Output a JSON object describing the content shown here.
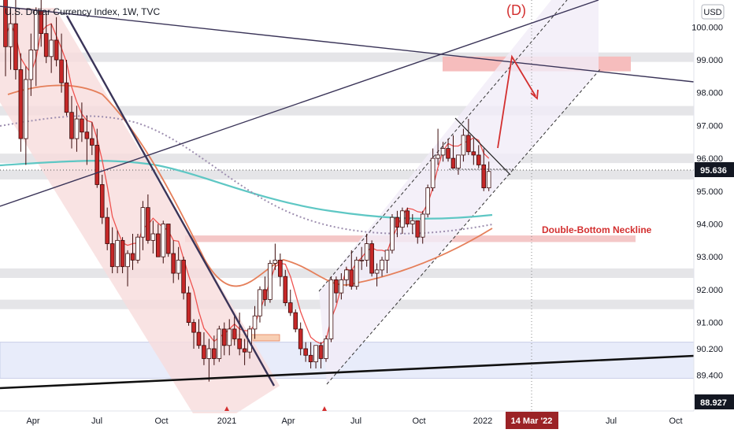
{
  "chart_title": "U.S. Dollar Currency Index, 1W, TVC",
  "chart_data": {
    "type": "candlestick",
    "title": "U.S. Dollar Currency Index, 1W, TVC",
    "currency": "USD",
    "timeframe": "1W",
    "ylim": [
      88.7,
      101.0
    ],
    "y_ticks": [
      100.0,
      99.0,
      98.0,
      97.0,
      96.0,
      95.0,
      94.0,
      93.0,
      92.0,
      91.0,
      90.2,
      89.4
    ],
    "x_ticks": [
      "Apr",
      "Jul",
      "Oct",
      "2021",
      "Apr",
      "Jul",
      "Oct",
      "2022",
      "Jul",
      "Oct"
    ],
    "current_price": "95.636",
    "low_price_label": "88.927",
    "marked_date": "14 Mar '22",
    "candles": [
      [
        101.8,
        102.3,
        98.5,
        99.4
      ],
      [
        99.4,
        100.6,
        98.7,
        100.1
      ],
      [
        100.1,
        100.9,
        98.4,
        98.7
      ],
      [
        98.7,
        99.2,
        96.2,
        96.6
      ],
      [
        96.6,
        98.8,
        95.8,
        98.4
      ],
      [
        98.4,
        99.8,
        97.9,
        99.3
      ],
      [
        99.3,
        100.6,
        98.2,
        100.5
      ],
      [
        100.5,
        101.2,
        99.4,
        99.8
      ],
      [
        99.8,
        100.4,
        98.9,
        99.1
      ],
      [
        99.1,
        100.1,
        98.6,
        99.6
      ],
      [
        99.6,
        100.3,
        98.8,
        99.0
      ],
      [
        99.0,
        99.8,
        98.0,
        98.3
      ],
      [
        98.3,
        99.0,
        97.3,
        97.4
      ],
      [
        97.4,
        97.9,
        96.3,
        96.6
      ],
      [
        96.6,
        97.6,
        96.2,
        97.2
      ],
      [
        97.2,
        97.7,
        96.5,
        96.8
      ],
      [
        96.8,
        97.3,
        95.8,
        96.6
      ],
      [
        96.6,
        97.1,
        96.1,
        96.4
      ],
      [
        96.4,
        96.9,
        95.1,
        95.2
      ],
      [
        95.2,
        95.5,
        94.0,
        94.2
      ],
      [
        94.2,
        94.5,
        93.2,
        93.4
      ],
      [
        93.4,
        93.9,
        92.5,
        92.7
      ],
      [
        92.7,
        93.8,
        92.5,
        93.5
      ],
      [
        93.5,
        93.6,
        92.5,
        92.7
      ],
      [
        92.7,
        93.2,
        92.1,
        93.1
      ],
      [
        93.1,
        93.7,
        92.6,
        92.9
      ],
      [
        92.9,
        93.7,
        92.8,
        93.6
      ],
      [
        93.6,
        94.7,
        93.2,
        94.5
      ],
      [
        94.5,
        94.9,
        93.4,
        93.5
      ],
      [
        93.5,
        94.1,
        93.1,
        93.7
      ],
      [
        93.7,
        94.0,
        93.0,
        93.0
      ],
      [
        93.0,
        94.1,
        92.8,
        94.0
      ],
      [
        94.0,
        94.0,
        93.0,
        93.1
      ],
      [
        93.1,
        93.5,
        92.2,
        92.5
      ],
      [
        92.5,
        93.3,
        92.3,
        92.9
      ],
      [
        92.9,
        93.0,
        91.7,
        91.9
      ],
      [
        91.9,
        92.1,
        90.9,
        91.0
      ],
      [
        91.0,
        91.1,
        90.2,
        90.7
      ],
      [
        90.7,
        91.1,
        90.2,
        90.3
      ],
      [
        90.3,
        90.7,
        89.7,
        89.9
      ],
      [
        89.9,
        90.5,
        89.2,
        90.2
      ],
      [
        90.2,
        90.6,
        89.7,
        89.9
      ],
      [
        89.9,
        90.9,
        89.8,
        90.8
      ],
      [
        90.8,
        91.0,
        90.0,
        90.3
      ],
      [
        90.3,
        91.1,
        90.0,
        90.8
      ],
      [
        90.8,
        91.2,
        90.3,
        90.5
      ],
      [
        90.5,
        91.3,
        90.0,
        90.2
      ],
      [
        90.2,
        90.5,
        89.7,
        90.1
      ],
      [
        90.1,
        90.9,
        89.9,
        90.8
      ],
      [
        90.8,
        91.5,
        90.5,
        91.2
      ],
      [
        91.2,
        92.1,
        91.0,
        92.0
      ],
      [
        92.0,
        92.4,
        91.5,
        91.7
      ],
      [
        91.7,
        92.9,
        91.6,
        92.8
      ],
      [
        92.8,
        93.4,
        92.6,
        92.9
      ],
      [
        92.9,
        93.1,
        92.1,
        92.4
      ],
      [
        92.4,
        92.6,
        91.5,
        91.6
      ],
      [
        91.6,
        92.0,
        91.2,
        91.3
      ],
      [
        91.3,
        91.4,
        90.7,
        90.8
      ],
      [
        90.8,
        91.0,
        90.0,
        90.2
      ],
      [
        90.2,
        90.4,
        89.8,
        90.0
      ],
      [
        90.0,
        90.4,
        89.6,
        89.8
      ],
      [
        89.8,
        90.3,
        89.6,
        90.3
      ],
      [
        90.3,
        90.4,
        89.6,
        89.9
      ],
      [
        89.9,
        90.6,
        89.8,
        90.5
      ],
      [
        90.5,
        92.4,
        90.4,
        92.3
      ],
      [
        92.3,
        92.4,
        91.6,
        91.9
      ],
      [
        91.9,
        92.5,
        91.7,
        92.3
      ],
      [
        92.3,
        92.7,
        92.1,
        92.6
      ],
      [
        92.6,
        93.2,
        92.0,
        92.1
      ],
      [
        92.1,
        93.0,
        92.0,
        92.9
      ],
      [
        92.9,
        93.3,
        92.6,
        92.9
      ],
      [
        92.9,
        93.7,
        92.7,
        93.4
      ],
      [
        93.4,
        93.5,
        92.4,
        92.5
      ],
      [
        92.5,
        92.8,
        92.1,
        92.6
      ],
      [
        92.6,
        93.0,
        92.4,
        92.9
      ],
      [
        92.9,
        93.2,
        92.5,
        93.2
      ],
      [
        93.2,
        94.3,
        93.1,
        94.2
      ],
      [
        94.2,
        94.4,
        93.6,
        93.9
      ],
      [
        93.9,
        94.5,
        93.7,
        94.4
      ],
      [
        94.4,
        94.5,
        93.9,
        94.0
      ],
      [
        94.0,
        94.3,
        93.7,
        94.1
      ],
      [
        94.1,
        94.1,
        93.4,
        93.6
      ],
      [
        93.6,
        94.4,
        93.4,
        94.3
      ],
      [
        94.3,
        95.2,
        94.2,
        95.1
      ],
      [
        95.1,
        96.3,
        95.0,
        96.0
      ],
      [
        96.0,
        96.9,
        95.8,
        96.1
      ],
      [
        96.1,
        96.5,
        95.9,
        96.3
      ],
      [
        96.3,
        96.6,
        95.9,
        96.0
      ],
      [
        96.0,
        96.7,
        95.7,
        95.7
      ],
      [
        95.7,
        96.1,
        95.5,
        96.1
      ],
      [
        96.1,
        96.9,
        95.9,
        96.7
      ],
      [
        96.7,
        97.2,
        96.1,
        96.2
      ],
      [
        96.2,
        96.6,
        95.8,
        96.1
      ],
      [
        96.1,
        96.4,
        95.7,
        95.8
      ],
      [
        95.8,
        96.3,
        95.0,
        95.1
      ],
      [
        95.1,
        95.9,
        95.0,
        95.6
      ]
    ],
    "series": [
      {
        "name": "",
        "color": "#e57f5a"
      },
      {
        "name": "",
        "color": "#ef5350"
      },
      {
        "name": "",
        "color": "#5ec7c4"
      },
      {
        "name": "",
        "color": "#9e8fb0"
      }
    ],
    "annotations": {
      "double_bottom_label": "Double-Bottom Neckline",
      "wave_label": "(D)"
    },
    "horizontal_zones": [
      99.08,
      97.45,
      96.0,
      95.5,
      92.5,
      91.55
    ],
    "neckline_zone": [
      93.45,
      93.65
    ],
    "target_zone": [
      98.65,
      99.1
    ],
    "support_zone": [
      89.3,
      90.4
    ]
  },
  "colors": {
    "bullish": "#ffffff",
    "bearish": "#c62828",
    "candle_outline": "#3a0a0a",
    "accent_red": "#d32f2f",
    "price_tag_bg": "#131722",
    "date_tag_bg": "#9b2226",
    "zone_gray": "#e5e5e8",
    "channel_fill": "#f8dcdc"
  },
  "axis": {
    "currency": "USD",
    "price_labels": [
      "100.000",
      "99.000",
      "98.000",
      "97.000",
      "96.000",
      "95.000",
      "94.000",
      "93.000",
      "92.000",
      "91.000",
      "90.200",
      "89.400"
    ],
    "current_price": "95.636",
    "low_price": "88.927",
    "time_labels": [
      "Apr",
      "Jul",
      "Oct",
      "2021",
      "Apr",
      "Jul",
      "Oct",
      "2022",
      "Jul",
      "Oct"
    ],
    "marked_date": "14 Mar '22"
  }
}
